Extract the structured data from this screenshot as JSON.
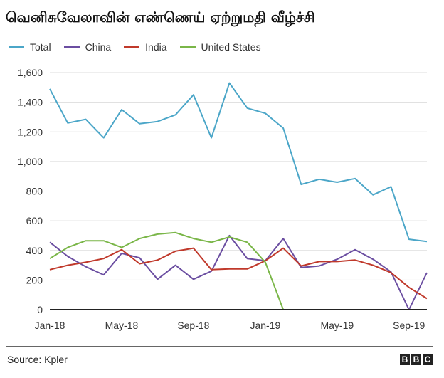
{
  "chart_data": {
    "type": "line",
    "title": "வெனிசுவேலாவின் எண்ணெய் ஏற்றுமதி வீழ்ச்சி",
    "xlabel": "",
    "ylabel": "",
    "ylim": [
      0,
      1600
    ],
    "yticks": [
      "0",
      "200",
      "400",
      "600",
      "800",
      "1,000",
      "1,200",
      "1,400",
      "1,600"
    ],
    "ytick_values": [
      0,
      200,
      400,
      600,
      800,
      1000,
      1200,
      1400,
      1600
    ],
    "x": [
      "Jan-18",
      "Feb-18",
      "Mar-18",
      "Apr-18",
      "May-18",
      "Jun-18",
      "Jul-18",
      "Aug-18",
      "Sep-18",
      "Oct-18",
      "Nov-18",
      "Dec-18",
      "Jan-19",
      "Feb-19",
      "Mar-19",
      "Apr-19",
      "May-19",
      "Jun-19",
      "Jul-19",
      "Aug-19",
      "Sep-19",
      "Oct-19"
    ],
    "xtick_labels": [
      "Jan-18",
      "May-18",
      "Sep-18",
      "Jan-19",
      "May-19",
      "Sep-19"
    ],
    "xtick_indices": [
      0,
      4,
      8,
      12,
      16,
      20
    ],
    "grid": true,
    "legend_position": "top-left",
    "series": [
      {
        "name": "Total",
        "color": "#4ba6c8",
        "values": [
          1490,
          1260,
          1285,
          1160,
          1350,
          1255,
          1270,
          1315,
          1450,
          1160,
          1530,
          1360,
          1325,
          1225,
          845,
          880,
          860,
          885,
          775,
          830,
          475,
          460
        ]
      },
      {
        "name": "China",
        "color": "#6b4ea1",
        "values": [
          455,
          360,
          290,
          235,
          380,
          350,
          205,
          300,
          205,
          260,
          500,
          345,
          330,
          480,
          285,
          295,
          340,
          405,
          340,
          255,
          0,
          250
        ]
      },
      {
        "name": "India",
        "color": "#c0392b",
        "values": [
          270,
          300,
          320,
          345,
          405,
          310,
          335,
          395,
          415,
          270,
          275,
          275,
          330,
          415,
          295,
          325,
          325,
          335,
          300,
          250,
          150,
          75
        ]
      },
      {
        "name": "United States",
        "color": "#7ab648",
        "values": [
          345,
          420,
          465,
          465,
          420,
          480,
          510,
          520,
          480,
          455,
          490,
          455,
          320,
          0,
          0,
          0,
          0,
          0,
          0,
          0,
          0,
          0
        ]
      }
    ]
  },
  "footer": {
    "source": "Source: Kpler",
    "logo_letters": [
      "B",
      "B",
      "C"
    ]
  }
}
